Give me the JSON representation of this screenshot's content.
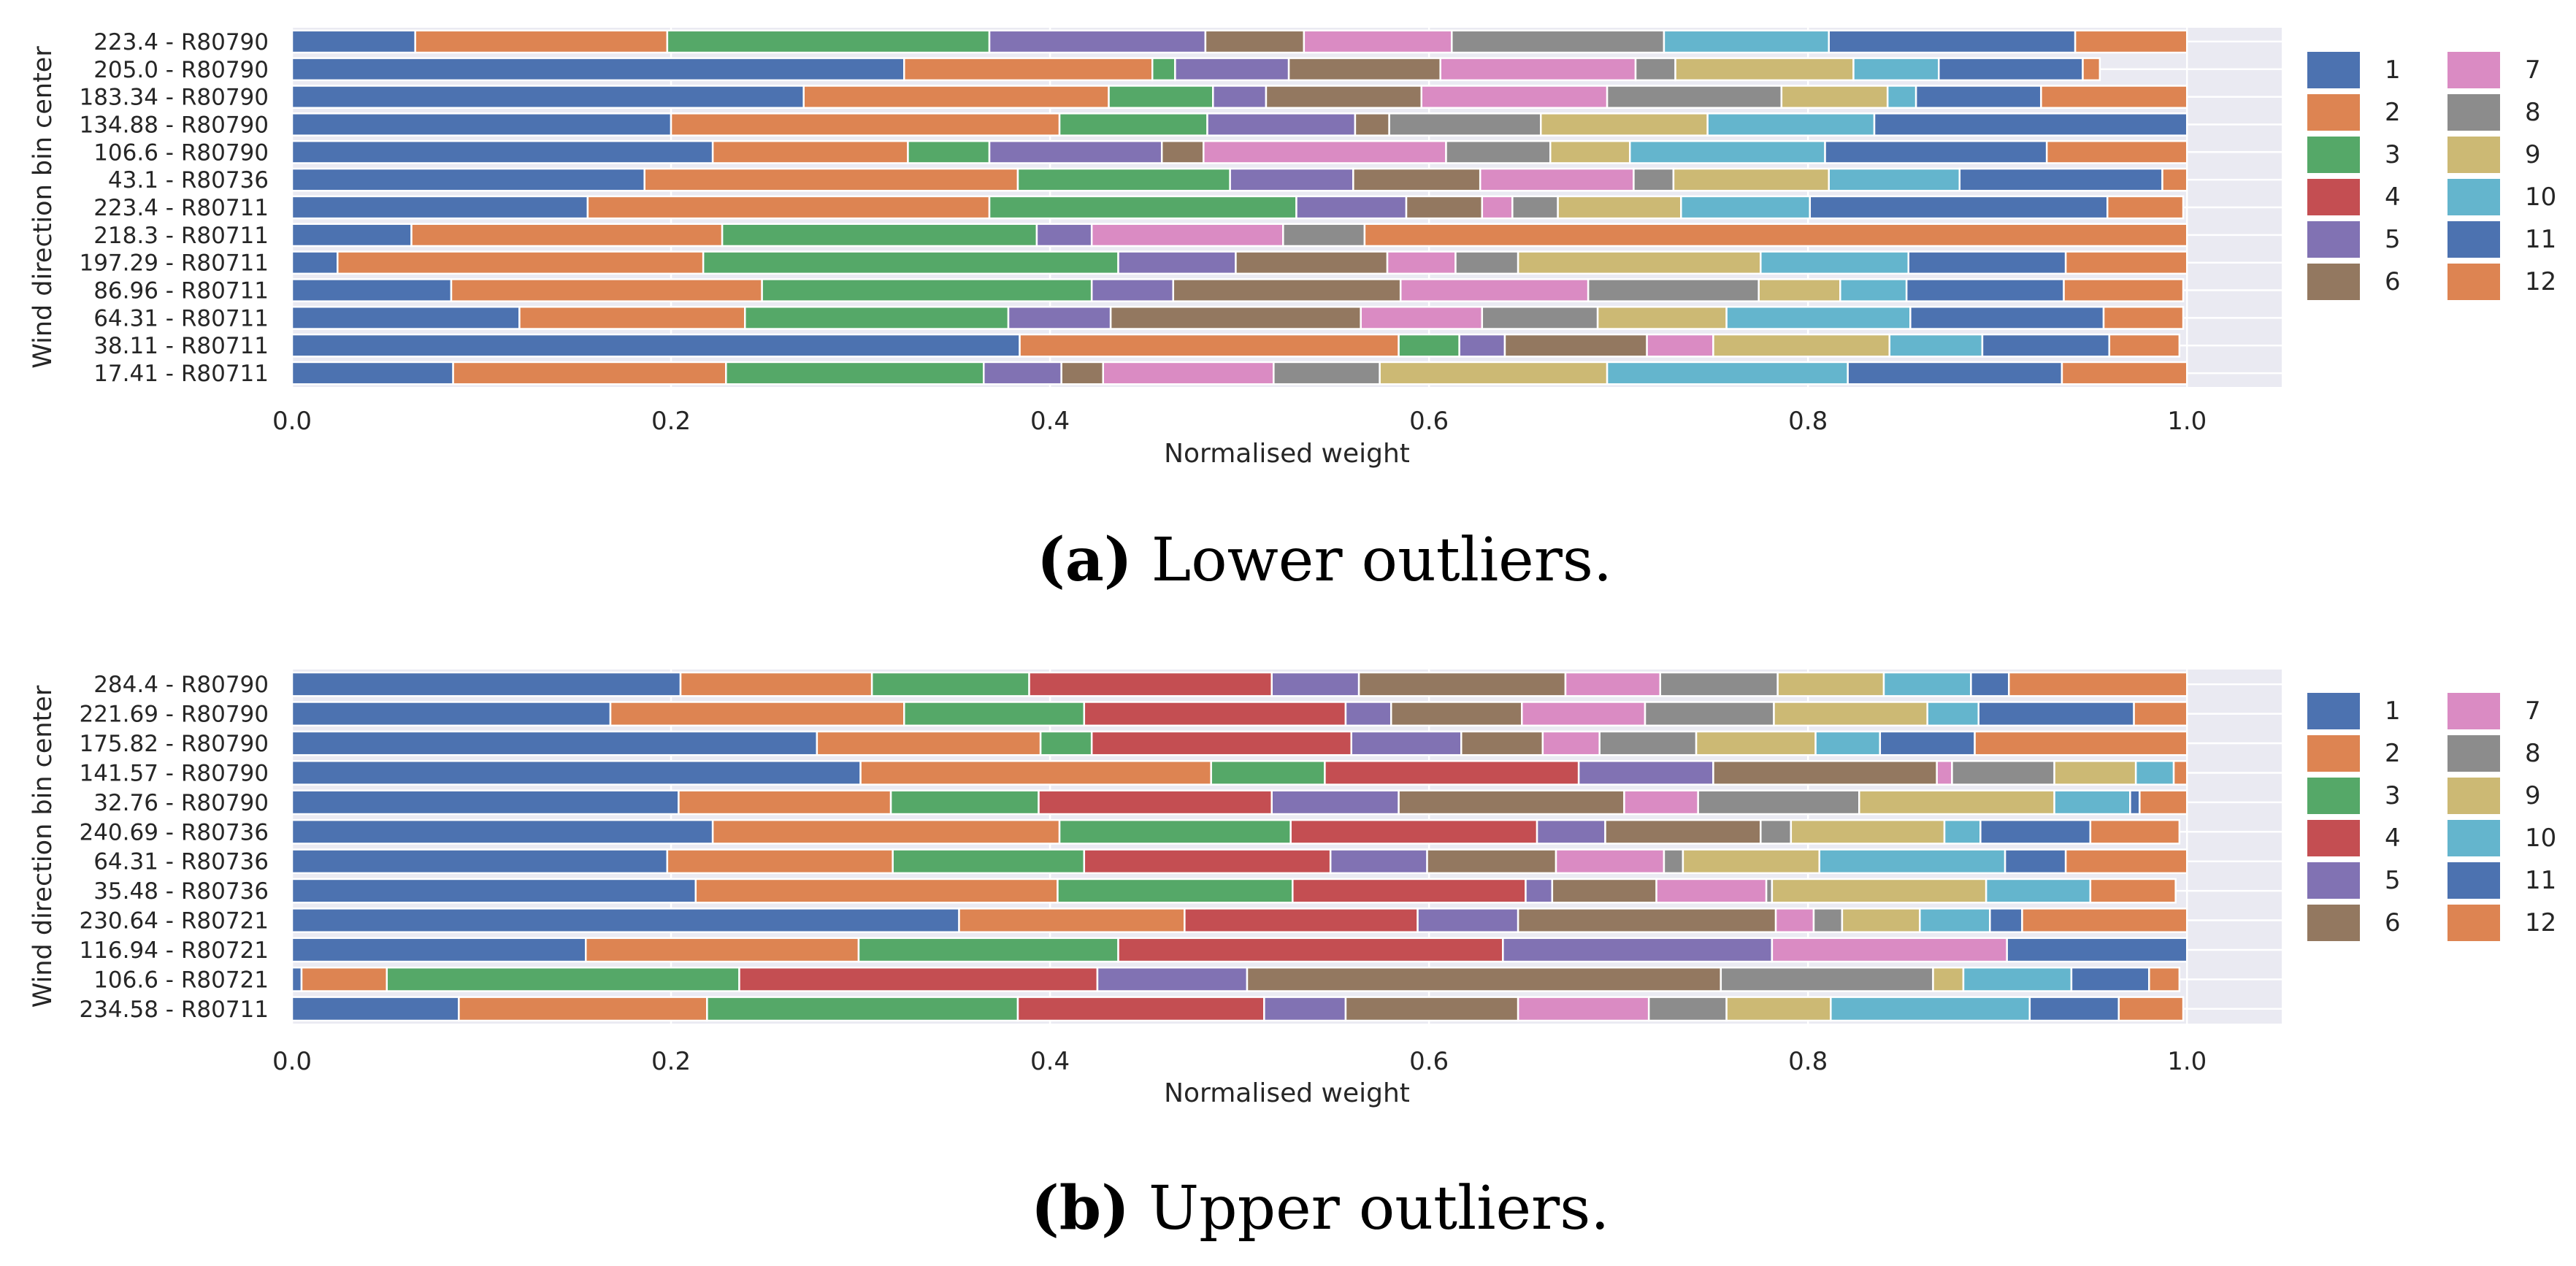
{
  "colors": {
    "1": "#4c72b0",
    "2": "#dd8452",
    "3": "#55a868",
    "4": "#c44e52",
    "5": "#8172b3",
    "6": "#937860",
    "7": "#da8bc3",
    "8": "#8c8c8c",
    "9": "#ccb974",
    "10": "#64b5cd",
    "11": "#4c72b0",
    "12": "#dd8452"
  },
  "chart_data": [
    {
      "type": "bar",
      "orientation": "horizontal",
      "stacked": true,
      "caption_label": "(a)",
      "caption_text": "Lower outliers.",
      "xlabel": "Normalised weight",
      "ylabel": "Wind direction bin center",
      "xlim": [
        0,
        1.05
      ],
      "xticks": [
        "0.0",
        "0.2",
        "0.4",
        "0.6",
        "0.8",
        "1.0"
      ],
      "legend_title": "",
      "legend": [
        "1",
        "2",
        "3",
        "4",
        "5",
        "6",
        "7",
        "8",
        "9",
        "10",
        "11",
        "12"
      ],
      "grid": true,
      "categories": [
        "223.4 - R80790",
        "205.0 - R80790",
        "183.34 - R80790",
        "134.88 - R80790",
        "106.6 - R80790",
        "43.1 - R80736",
        "223.4 - R80711",
        "218.3 - R80711",
        "197.29 - R80711",
        "86.96 - R80711",
        "64.31 - R80711",
        "38.11 - R80711",
        "17.41 - R80711"
      ],
      "rows": [
        [
          0.065,
          0.133,
          0.17,
          0.0,
          0.114,
          0.052,
          0.078,
          0.112,
          0.0,
          0.087,
          0.13,
          0.059
        ],
        [
          0.323,
          0.131,
          0.012,
          0.0,
          0.06,
          0.08,
          0.103,
          0.021,
          0.094,
          0.045,
          0.076,
          0.009
        ],
        [
          0.27,
          0.161,
          0.055,
          0.0,
          0.028,
          0.082,
          0.098,
          0.092,
          0.056,
          0.015,
          0.066,
          0.077
        ],
        [
          0.2,
          0.205,
          0.078,
          0.0,
          0.078,
          0.018,
          0.0,
          0.08,
          0.088,
          0.088,
          0.165,
          0.0
        ],
        [
          0.222,
          0.103,
          0.043,
          0.0,
          0.091,
          0.022,
          0.128,
          0.055,
          0.042,
          0.103,
          0.117,
          0.074
        ],
        [
          0.186,
          0.197,
          0.112,
          0.0,
          0.065,
          0.067,
          0.081,
          0.021,
          0.082,
          0.069,
          0.107,
          0.013
        ],
        [
          0.156,
          0.212,
          0.162,
          0.0,
          0.058,
          0.04,
          0.016,
          0.024,
          0.065,
          0.068,
          0.157,
          0.04
        ],
        [
          0.063,
          0.164,
          0.166,
          0.0,
          0.029,
          0.0,
          0.101,
          0.043,
          0.0,
          0.0,
          0.0,
          0.434
        ],
        [
          0.024,
          0.193,
          0.219,
          0.0,
          0.062,
          0.08,
          0.036,
          0.033,
          0.128,
          0.078,
          0.083,
          0.064
        ],
        [
          0.084,
          0.164,
          0.174,
          0.0,
          0.043,
          0.12,
          0.099,
          0.09,
          0.043,
          0.035,
          0.083,
          0.063
        ],
        [
          0.12,
          0.119,
          0.139,
          0.0,
          0.054,
          0.132,
          0.064,
          0.061,
          0.068,
          0.097,
          0.102,
          0.042
        ],
        [
          0.384,
          0.2,
          0.032,
          0.0,
          0.024,
          0.075,
          0.035,
          0.0,
          0.093,
          0.049,
          0.067,
          0.037
        ],
        [
          0.085,
          0.144,
          0.136,
          0.0,
          0.041,
          0.022,
          0.09,
          0.056,
          0.12,
          0.127,
          0.113,
          0.066
        ]
      ]
    },
    {
      "type": "bar",
      "orientation": "horizontal",
      "stacked": true,
      "caption_label": "(b)",
      "caption_text": "Upper outliers.",
      "xlabel": "Normalised weight",
      "ylabel": "Wind direction bin center",
      "xlim": [
        0,
        1.05
      ],
      "xticks": [
        "0.0",
        "0.2",
        "0.4",
        "0.6",
        "0.8",
        "1.0"
      ],
      "legend_title": "",
      "legend": [
        "1",
        "2",
        "3",
        "4",
        "5",
        "6",
        "7",
        "8",
        "9",
        "10",
        "11",
        "12"
      ],
      "grid": true,
      "categories": [
        "284.4 - R80790",
        "221.69 - R80790",
        "175.82 - R80790",
        "141.57 - R80790",
        "32.76 - R80790",
        "240.69 - R80736",
        "64.31 - R80736",
        "35.48 - R80736",
        "230.64 - R80721",
        "116.94 - R80721",
        "106.6 - R80721",
        "234.58 - R80711"
      ],
      "rows": [
        [
          0.205,
          0.101,
          0.083,
          0.128,
          0.046,
          0.109,
          0.05,
          0.062,
          0.056,
          0.046,
          0.02,
          0.094
        ],
        [
          0.168,
          0.155,
          0.095,
          0.138,
          0.024,
          0.069,
          0.065,
          0.068,
          0.081,
          0.027,
          0.082,
          0.028
        ],
        [
          0.277,
          0.118,
          0.027,
          0.137,
          0.058,
          0.043,
          0.03,
          0.051,
          0.063,
          0.034,
          0.05,
          0.112
        ],
        [
          0.3,
          0.185,
          0.06,
          0.134,
          0.071,
          0.118,
          0.008,
          0.054,
          0.043,
          0.02,
          0.0,
          0.007
        ],
        [
          0.204,
          0.112,
          0.078,
          0.123,
          0.067,
          0.119,
          0.039,
          0.085,
          0.103,
          0.04,
          0.005,
          0.025
        ],
        [
          0.222,
          0.183,
          0.122,
          0.13,
          0.036,
          0.082,
          0.0,
          0.016,
          0.081,
          0.019,
          0.058,
          0.047
        ],
        [
          0.198,
          0.119,
          0.101,
          0.13,
          0.051,
          0.068,
          0.057,
          0.01,
          0.072,
          0.098,
          0.032,
          0.064
        ],
        [
          0.213,
          0.191,
          0.124,
          0.123,
          0.014,
          0.055,
          0.058,
          0.003,
          0.113,
          0.055,
          0.0,
          0.045
        ],
        [
          0.352,
          0.119,
          0.0,
          0.123,
          0.053,
          0.136,
          0.02,
          0.015,
          0.041,
          0.037,
          0.017,
          0.087
        ],
        [
          0.155,
          0.144,
          0.137,
          0.203,
          0.142,
          0.0,
          0.124,
          0.0,
          0.0,
          0.0,
          0.095,
          0.0
        ],
        [
          0.005,
          0.045,
          0.186,
          0.189,
          0.079,
          0.25,
          0.0,
          0.112,
          0.016,
          0.057,
          0.041,
          0.016
        ],
        [
          0.088,
          0.131,
          0.164,
          0.13,
          0.043,
          0.091,
          0.069,
          0.041,
          0.055,
          0.105,
          0.047,
          0.034
        ]
      ]
    }
  ]
}
